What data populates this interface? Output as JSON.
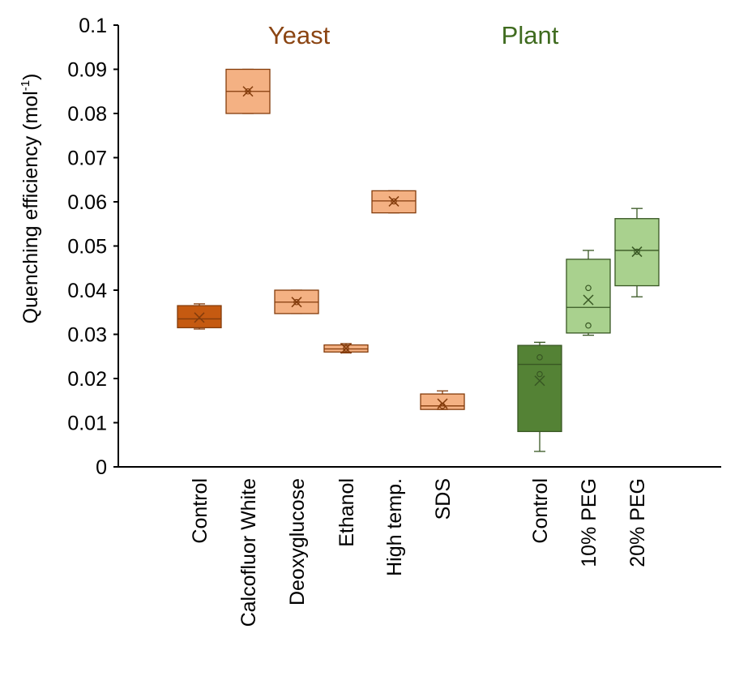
{
  "chart_data": {
    "type": "box",
    "ylabel": {
      "text": "Quenching efficiency (mol",
      "superscript": "-1",
      "close": ")"
    },
    "ylim": [
      0,
      0.1
    ],
    "yticks": [
      "0",
      "0.01",
      "0.02",
      "0.03",
      "0.04",
      "0.05",
      "0.06",
      "0.07",
      "0.08",
      "0.09",
      "0.1"
    ],
    "grid": false,
    "groups": [
      {
        "label": "Yeast",
        "color": "#8B4513"
      },
      {
        "label": "Plant",
        "color": "#3F6B1F"
      }
    ],
    "boxes": [
      {
        "group": "Yeast",
        "category": "Control",
        "fill": "#C55A11",
        "stroke": "#843C0C",
        "min": 0.0312,
        "q1": 0.0315,
        "median": 0.0335,
        "q3": 0.0365,
        "max": 0.0369,
        "mean": 0.0338,
        "outliers": []
      },
      {
        "group": "Yeast",
        "category": "Calcofluor White",
        "fill": "#F4B183",
        "stroke": "#843C0C",
        "min": 0.08,
        "q1": 0.08,
        "median": 0.085,
        "q3": 0.09,
        "max": 0.09,
        "mean": 0.085,
        "outliers": [
          0.085
        ]
      },
      {
        "group": "Yeast",
        "category": "Deoxyglucose",
        "fill": "#F4B183",
        "stroke": "#843C0C",
        "min": 0.0347,
        "q1": 0.0347,
        "median": 0.0373,
        "q3": 0.04,
        "max": 0.04,
        "mean": 0.0373,
        "outliers": [
          0.0373
        ]
      },
      {
        "group": "Yeast",
        "category": "Ethanol",
        "fill": "#F4B183",
        "stroke": "#843C0C",
        "min": 0.0258,
        "q1": 0.026,
        "median": 0.0267,
        "q3": 0.0276,
        "max": 0.0279,
        "mean": 0.0268,
        "outliers": [
          0.0268
        ]
      },
      {
        "group": "Yeast",
        "category": "High temp.",
        "fill": "#F4B183",
        "stroke": "#843C0C",
        "min": 0.0575,
        "q1": 0.0575,
        "median": 0.0602,
        "q3": 0.0625,
        "max": 0.0625,
        "mean": 0.0601,
        "outliers": [
          0.0601
        ]
      },
      {
        "group": "Yeast",
        "category": "SDS",
        "fill": "#F4B183",
        "stroke": "#843C0C",
        "min": 0.013,
        "q1": 0.013,
        "median": 0.0138,
        "q3": 0.0165,
        "max": 0.0172,
        "mean": 0.0143,
        "outliers": [
          0.0138
        ]
      },
      {
        "group": "Plant",
        "category": "Control",
        "fill": "#548235",
        "stroke": "#385723",
        "min": 0.0035,
        "q1": 0.008,
        "median": 0.0232,
        "q3": 0.0275,
        "max": 0.0282,
        "mean": 0.0195,
        "outliers": [
          0.0248,
          0.021
        ]
      },
      {
        "group": "Plant",
        "category": "10% PEG",
        "fill": "#A9D18E",
        "stroke": "#385723",
        "min": 0.0298,
        "q1": 0.0303,
        "median": 0.0361,
        "q3": 0.047,
        "max": 0.049,
        "mean": 0.0378,
        "outliers": [
          0.0405,
          0.032
        ]
      },
      {
        "group": "Plant",
        "category": "20% PEG",
        "fill": "#A9D18E",
        "stroke": "#385723",
        "min": 0.0385,
        "q1": 0.041,
        "median": 0.049,
        "q3": 0.0562,
        "max": 0.0585,
        "mean": 0.0487,
        "outliers": [
          0.0487
        ]
      }
    ]
  }
}
